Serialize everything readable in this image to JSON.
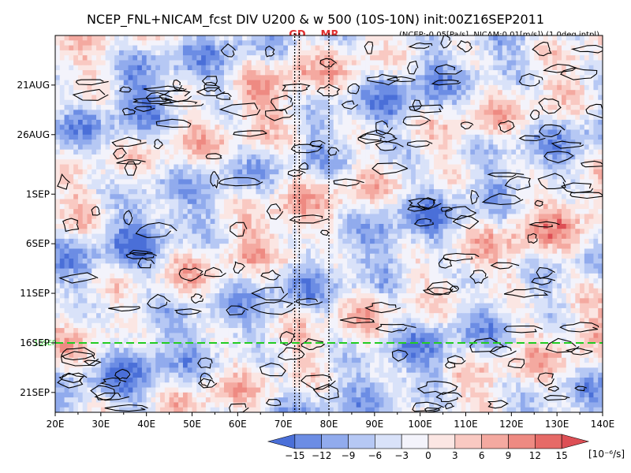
{
  "chart_data": {
    "type": "heatmap",
    "title": "NCEP_FNL+NICAM_fcst DIV U200 & w 500 (10S-10N) init:00Z16SEP2011",
    "subtitle": "(NCEP:-0.05[Pa/s], NICAM:0.01[m/s]) (1.0deg intpl)",
    "xlabel": "",
    "ylabel": "",
    "x_range": [
      20,
      140
    ],
    "x_ticks": [
      20,
      30,
      40,
      50,
      60,
      70,
      80,
      90,
      100,
      110,
      120,
      130,
      140
    ],
    "x_tick_labels": [
      "20E",
      "30E",
      "40E",
      "50E",
      "60E",
      "70E",
      "80E",
      "90E",
      "100E",
      "110E",
      "120E",
      "130E",
      "140E"
    ],
    "y_range": [
      "2011-08-16",
      "2011-09-23"
    ],
    "y_ticks": [
      "2011-08-21",
      "2011-08-26",
      "2011-09-01",
      "2011-09-06",
      "2011-09-11",
      "2011-09-16",
      "2011-09-21"
    ],
    "y_tick_labels": [
      "21AUG",
      "26AUG",
      "1SEP",
      "6SEP",
      "11SEP",
      "16SEP",
      "21SEP"
    ],
    "y_direction": "time increases downward",
    "markers": [
      {
        "label": "GD",
        "lon_lines": [
          72.5,
          73.5
        ],
        "style": "dotted"
      },
      {
        "label": "MR",
        "lon_lines": [
          80
        ],
        "style": "dotted"
      }
    ],
    "init_line": {
      "date": "2011-09-16",
      "label": "16SEP",
      "color": "#22cc22",
      "style": "dashed"
    },
    "colorbar": {
      "levels": [
        -15,
        -12,
        -9,
        -6,
        -3,
        0,
        3,
        6,
        9,
        12,
        15
      ],
      "labels": [
        "−15",
        "−12",
        "−9",
        "−6",
        "−3",
        "0",
        "3",
        "6",
        "9",
        "12",
        "15"
      ],
      "unit": "[10⁻⁶/s]",
      "colors": [
        "#4a6fd8",
        "#6c8de4",
        "#91abed",
        "#b6c8f4",
        "#d9e2f9",
        "#f3f3fb",
        "#fbe6e3",
        "#f9c9c2",
        "#f4a9a0",
        "#ee8a82",
        "#e66a67",
        "#dd4f55"
      ]
    },
    "fill_field": "divergence of U200 (shaded)",
    "contour_field": "omega 500 (contour)"
  }
}
